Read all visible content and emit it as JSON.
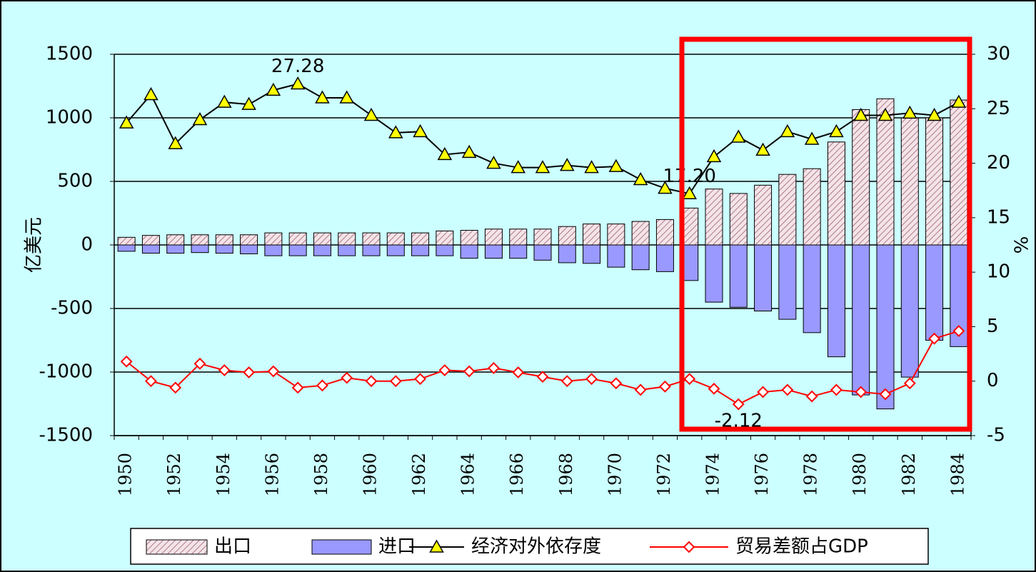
{
  "chart_data": {
    "type": "combo",
    "categories": [
      "1950",
      null,
      "1952",
      null,
      "1954",
      null,
      "1956",
      null,
      "1958",
      null,
      "1960",
      null,
      "1962",
      null,
      "1964",
      null,
      "1966",
      null,
      "1968",
      null,
      "1970",
      null,
      "1972",
      null,
      "1974",
      null,
      "1976",
      null,
      "1978",
      null,
      "1980",
      null,
      "1982",
      null,
      "1984"
    ],
    "y_label": "亿美元",
    "y2_label": "%",
    "ylim": [
      -1500,
      1500
    ],
    "yticks": [
      -1500,
      -1000,
      -500,
      0,
      500,
      1000,
      1500
    ],
    "y2lim": [
      -5,
      30
    ],
    "y2ticks": [
      -5,
      0,
      5,
      10,
      15,
      20,
      25,
      30
    ],
    "grid": true,
    "series": [
      {
        "name": "出口",
        "type": "bar",
        "color": "#e6c6cf",
        "hatch": true,
        "values": [
          60,
          75,
          80,
          80,
          80,
          80,
          95,
          95,
          95,
          95,
          95,
          95,
          95,
          110,
          115,
          125,
          125,
          125,
          145,
          165,
          165,
          185,
          200,
          290,
          440,
          405,
          470,
          555,
          600,
          810,
          1065,
          1150,
          1000,
          1000,
          1140
        ]
      },
      {
        "name": "进口",
        "type": "bar",
        "color": "#9999ff",
        "values": [
          -50,
          -65,
          -65,
          -60,
          -65,
          -70,
          -85,
          -85,
          -85,
          -85,
          -85,
          -85,
          -85,
          -85,
          -105,
          -105,
          -105,
          -120,
          -140,
          -145,
          -175,
          -195,
          -210,
          -280,
          -450,
          -490,
          -520,
          -585,
          -690,
          -880,
          -1180,
          -1290,
          -1040,
          -750,
          -800
        ]
      },
      {
        "name": "经济对外依存度",
        "type": "line",
        "axis": "y2",
        "color": "#000000",
        "marker": "triangle",
        "marker_color": "#ffff00",
        "values": [
          23.7,
          26.3,
          21.8,
          24.0,
          25.6,
          25.4,
          26.7,
          27.28,
          26.0,
          26.0,
          24.4,
          22.8,
          22.9,
          20.8,
          21.0,
          20.0,
          19.6,
          19.6,
          19.8,
          19.6,
          19.7,
          18.5,
          17.7,
          17.2,
          20.6,
          22.4,
          21.2,
          22.9,
          22.2,
          22.9,
          24.4,
          24.4,
          24.6,
          24.4,
          25.6
        ],
        "value_labels": [
          null,
          null,
          null,
          null,
          null,
          null,
          null,
          "27.28",
          null,
          null,
          null,
          null,
          null,
          null,
          null,
          null,
          null,
          null,
          null,
          null,
          null,
          null,
          null,
          "17.20",
          null,
          null,
          null,
          null,
          null,
          null,
          null,
          null,
          null,
          null,
          null
        ]
      },
      {
        "name": "贸易差额占GDP",
        "type": "line",
        "axis": "y2",
        "color": "#ff0000",
        "marker": "diamond",
        "marker_color": "#ffffff",
        "values": [
          1.8,
          0,
          -0.6,
          1.6,
          1.0,
          0.8,
          0.9,
          -0.6,
          -0.4,
          0.3,
          0,
          0,
          0.2,
          1.0,
          0.9,
          1.2,
          0.8,
          0.4,
          0,
          0.2,
          -0.2,
          -0.8,
          -0.5,
          0.2,
          -0.7,
          -2.12,
          -1.0,
          -0.8,
          -1.4,
          -0.8,
          -1.0,
          -1.2,
          -0.2,
          3.9,
          4.6
        ],
        "value_labels": [
          null,
          null,
          null,
          null,
          null,
          null,
          null,
          null,
          null,
          null,
          null,
          null,
          null,
          null,
          null,
          null,
          null,
          null,
          null,
          null,
          null,
          null,
          null,
          null,
          null,
          "-2.12",
          null,
          null,
          null,
          null,
          null,
          null,
          null,
          null,
          null
        ]
      }
    ]
  }
}
